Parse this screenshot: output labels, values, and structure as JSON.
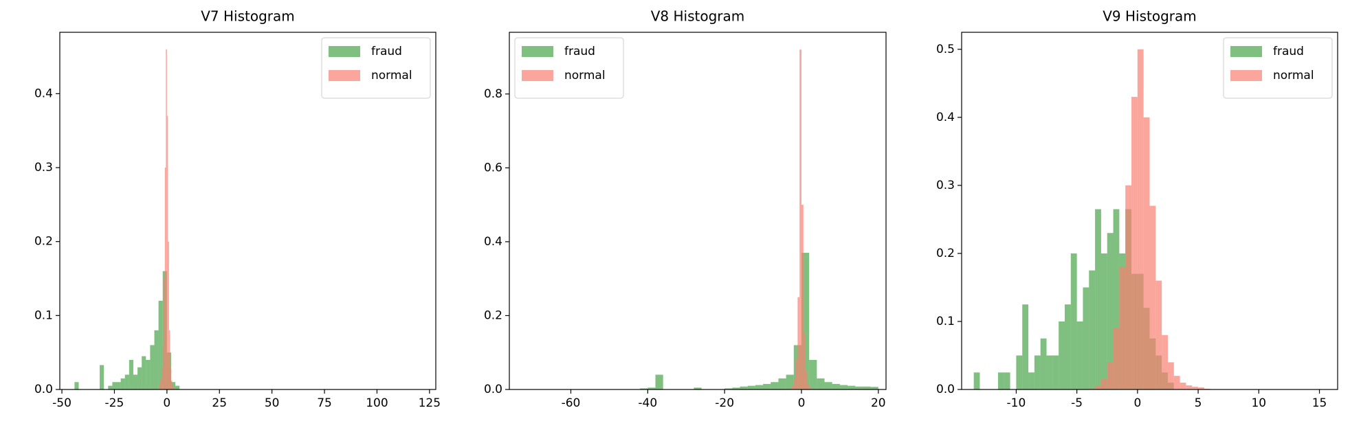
{
  "chart_data": [
    {
      "type": "histogram",
      "title": "V7 Histogram",
      "legend": "upper right",
      "xlim": [
        -51,
        128
      ],
      "xticks": [
        -50,
        -25,
        0,
        25,
        50,
        75,
        100,
        125
      ],
      "ylim": [
        0,
        0.483
      ],
      "yticks": [
        {
          "value": 0,
          "label": "0.0"
        },
        0.1,
        0.2,
        0.3,
        0.4
      ],
      "series": [
        {
          "name": "fraud",
          "color": "#008000",
          "bins": [
            -44,
            -42,
            -40,
            -38,
            -36,
            -34,
            -32,
            -30,
            -28,
            -26,
            -24,
            -22,
            -20,
            -18,
            -16,
            -14,
            -12,
            -10,
            -8,
            -6,
            -4,
            -2,
            0,
            2,
            4,
            6
          ],
          "values": [
            0.01,
            0,
            0,
            0,
            0,
            0,
            0.033,
            0,
            0.005,
            0.01,
            0.01,
            0.015,
            0.02,
            0.04,
            0.02,
            0.03,
            0.045,
            0.04,
            0.06,
            0.08,
            0.12,
            0.16,
            0.05,
            0.01,
            0.005
          ]
        },
        {
          "name": "normal",
          "color": "#fa8072",
          "bins": [
            -4,
            -3.5,
            -3,
            -2.5,
            -2,
            -1.5,
            -1,
            -0.5,
            0,
            0.5,
            1,
            1.5,
            2,
            2.5,
            3,
            3.5,
            4
          ],
          "values": [
            0.003,
            0.008,
            0.015,
            0.03,
            0.06,
            0.15,
            0.3,
            0.46,
            0.37,
            0.2,
            0.08,
            0.03,
            0.012,
            0.005,
            0.003,
            0.002
          ]
        }
      ]
    },
    {
      "type": "histogram",
      "title": "V8 Histogram",
      "legend": "upper left",
      "xlim": [
        -76,
        22
      ],
      "xticks": [
        -60,
        -40,
        -20,
        0,
        20
      ],
      "ylim": [
        0,
        0.967
      ],
      "yticks": [
        {
          "value": 0,
          "label": "0.0"
        },
        0.2,
        0.4,
        0.6,
        0.8
      ],
      "series": [
        {
          "name": "fraud",
          "color": "#008000",
          "bins": [
            -42,
            -40,
            -38,
            -36,
            -34,
            -32,
            -30,
            -28,
            -26,
            -24,
            -22,
            -20,
            -18,
            -16,
            -14,
            -12,
            -10,
            -8,
            -6,
            -4,
            -2,
            0,
            2,
            4,
            6,
            8,
            10,
            12,
            14,
            16,
            18,
            20
          ],
          "values": [
            0.003,
            0.005,
            0.04,
            0,
            0,
            0,
            0,
            0.005,
            0,
            0,
            0,
            0.003,
            0.005,
            0.008,
            0.01,
            0.012,
            0.015,
            0.02,
            0.03,
            0.04,
            0.12,
            0.37,
            0.08,
            0.03,
            0.02,
            0.015,
            0.012,
            0.01,
            0.008,
            0.008,
            0.007
          ]
        },
        {
          "name": "normal",
          "color": "#fa8072",
          "bins": [
            -3,
            -2.5,
            -2,
            -1.5,
            -1,
            -0.5,
            0,
            0.5,
            1,
            1.5,
            2,
            2.5,
            3
          ],
          "values": [
            0.003,
            0.01,
            0.03,
            0.08,
            0.25,
            0.92,
            0.5,
            0.15,
            0.05,
            0.015,
            0.005,
            0.002
          ]
        }
      ]
    },
    {
      "type": "histogram",
      "title": "V9 Histogram",
      "legend": "upper right",
      "xlim": [
        -14.5,
        16.5
      ],
      "xticks": [
        -10,
        -5,
        0,
        5,
        10,
        15
      ],
      "ylim": [
        0,
        0.525
      ],
      "yticks": [
        {
          "value": 0,
          "label": "0.0"
        },
        0.1,
        0.2,
        0.3,
        0.4,
        0.5
      ],
      "series": [
        {
          "name": "fraud",
          "color": "#008000",
          "bins": [
            -13.5,
            -13,
            -12.5,
            -12,
            -11.5,
            -11,
            -10.5,
            -10,
            -9.5,
            -9,
            -8.5,
            -8,
            -7.5,
            -7,
            -6.5,
            -6,
            -5.5,
            -5,
            -4.5,
            -4,
            -3.5,
            -3,
            -2.5,
            -2,
            -1.5,
            -1,
            -0.5,
            0,
            0.5,
            1,
            1.5,
            2,
            2.5,
            3
          ],
          "values": [
            0.025,
            0,
            0,
            0,
            0.025,
            0.025,
            0,
            0.05,
            0.125,
            0.025,
            0.05,
            0.075,
            0.05,
            0.05,
            0.1,
            0.125,
            0.2,
            0.1,
            0.15,
            0.175,
            0.265,
            0.2,
            0.23,
            0.265,
            0.2,
            0.265,
            0.17,
            0.17,
            0.12,
            0.075,
            0.05,
            0.025,
            0.01
          ]
        },
        {
          "name": "normal",
          "color": "#fa8072",
          "bins": [
            -4,
            -3.5,
            -3,
            -2.5,
            -2,
            -1.5,
            -1,
            -0.5,
            0,
            0.5,
            1,
            1.5,
            2,
            2.5,
            3,
            3.5,
            4,
            4.5,
            5,
            5.5,
            6
          ],
          "values": [
            0.002,
            0.005,
            0.015,
            0.04,
            0.09,
            0.18,
            0.3,
            0.43,
            0.5,
            0.4,
            0.27,
            0.16,
            0.08,
            0.04,
            0.02,
            0.01,
            0.006,
            0.004,
            0.003,
            0.001
          ]
        }
      ]
    }
  ]
}
